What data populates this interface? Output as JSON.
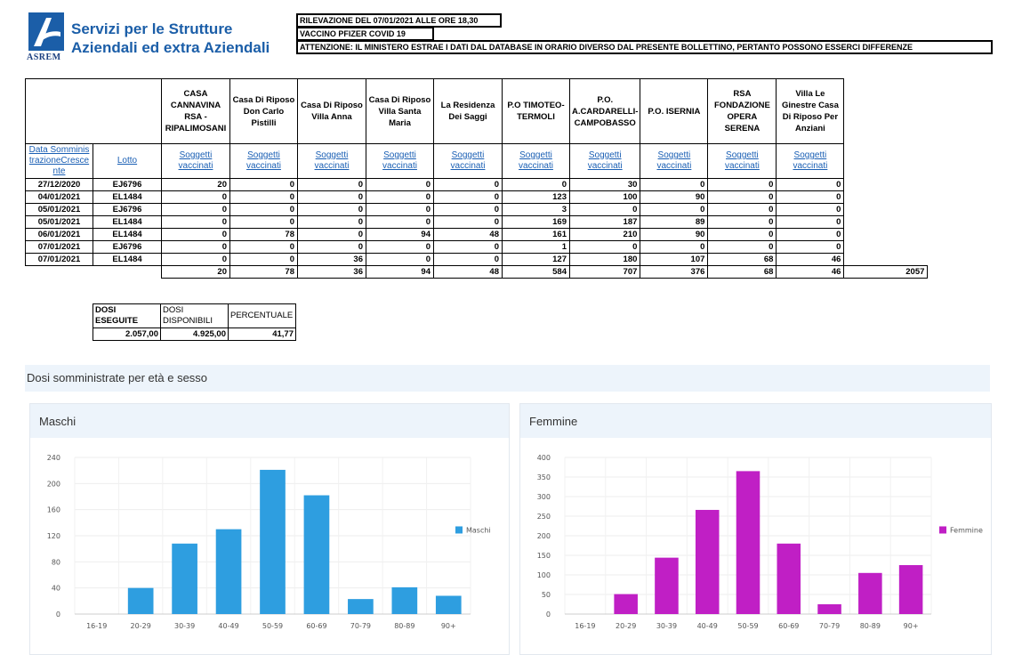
{
  "header": {
    "logo_text": "ASREM",
    "brand_line1": "Servizi per le Strutture",
    "brand_line2": "Aziendali ed extra Aziendali",
    "notice_1": "RILEVAZIONE DEL 07/01/2021 ALLE ORE 18,30",
    "notice_2": "VACCINO PFIZER COVID 19",
    "notice_3": "ATTENZIONE: IL MINISTERO ESTRAE I DATI DAL DATABASE IN ORARIO DIVERSO DAL PRESENTE BOLLETTINO, PERTANTO POSSONO ESSERCI DIFFERENZE"
  },
  "table": {
    "date_header": "Data SomministrazioneCrescente",
    "lot_header": "Lotto",
    "sub_label": "Soggetti vaccinati",
    "columns": [
      "CASA CANNAVINA RSA - RIPALIMOSANI",
      "Casa Di Riposo Don Carlo Pistilli",
      "Casa Di Riposo Villa Anna",
      "Casa Di Riposo Villa Santa Maria",
      "La Residenza Dei Saggi",
      "P.O TIMOTEO-TERMOLI",
      "P.O. A.CARDARELLI-CAMPOBASSO",
      "P.O. ISERNIA",
      "RSA FONDAZIONE OPERA SERENA",
      "Villa Le Ginestre Casa Di Riposo Per Anziani"
    ],
    "rows": [
      {
        "date": "27/12/2020",
        "lot": "EJ6796",
        "values": [
          "20",
          "0",
          "0",
          "0",
          "0",
          "0",
          "30",
          "0",
          "0",
          "0"
        ]
      },
      {
        "date": "04/01/2021",
        "lot": "EL1484",
        "values": [
          "0",
          "0",
          "0",
          "0",
          "0",
          "123",
          "100",
          "90",
          "0",
          "0"
        ]
      },
      {
        "date": "05/01/2021",
        "lot": "EJ6796",
        "values": [
          "0",
          "0",
          "0",
          "0",
          "0",
          "3",
          "0",
          "0",
          "0",
          "0"
        ]
      },
      {
        "date": "05/01/2021",
        "lot": "EL1484",
        "values": [
          "0",
          "0",
          "0",
          "0",
          "0",
          "169",
          "187",
          "89",
          "0",
          "0"
        ]
      },
      {
        "date": "06/01/2021",
        "lot": "EL1484",
        "values": [
          "0",
          "78",
          "0",
          "94",
          "48",
          "161",
          "210",
          "90",
          "0",
          "0"
        ]
      },
      {
        "date": "07/01/2021",
        "lot": "EJ6796",
        "values": [
          "0",
          "0",
          "0",
          "0",
          "0",
          "1",
          "0",
          "0",
          "0",
          "0"
        ]
      },
      {
        "date": "07/01/2021",
        "lot": "EL1484",
        "values": [
          "0",
          "0",
          "36",
          "0",
          "0",
          "127",
          "180",
          "107",
          "68",
          "46"
        ]
      }
    ],
    "totals": [
      "20",
      "78",
      "36",
      "94",
      "48",
      "584",
      "707",
      "376",
      "68",
      "46"
    ],
    "grand_total": "2057"
  },
  "summary": {
    "h1": "DOSI ESEGUITE",
    "h2": "DOSI DISPONIBILI",
    "h3": "PERCENTUALE",
    "v1": "2.057,00",
    "v2": "4.925,00",
    "v3": "41,77"
  },
  "charts_section_title": "Dosi somministrate per età e sesso",
  "chart_data": [
    {
      "type": "bar",
      "title": "Maschi",
      "categories": [
        "16-19",
        "20-29",
        "30-39",
        "40-49",
        "50-59",
        "60-69",
        "70-79",
        "80-89",
        "90+"
      ],
      "series": [
        {
          "name": "Maschi",
          "values": [
            0,
            40,
            108,
            130,
            221,
            182,
            23,
            41,
            28
          ]
        }
      ],
      "yticks": [
        "0",
        "40",
        "80",
        "120",
        "160",
        "200",
        "240"
      ],
      "ylim": [
        0,
        240
      ],
      "legend": "right",
      "grid": true,
      "color": "#2e9ee0"
    },
    {
      "type": "bar",
      "title": "Femmine",
      "categories": [
        "16-19",
        "20-29",
        "30-39",
        "40-49",
        "50-59",
        "60-69",
        "70-79",
        "80-89",
        "90+"
      ],
      "series": [
        {
          "name": "Femmine",
          "values": [
            0,
            51,
            144,
            266,
            365,
            180,
            25,
            105,
            125
          ]
        }
      ],
      "yticks": [
        "0",
        "50",
        "100",
        "150",
        "200",
        "250",
        "300",
        "350",
        "400"
      ],
      "ylim": [
        0,
        400
      ],
      "legend": "right",
      "grid": true,
      "color": "#c01fc5"
    }
  ]
}
